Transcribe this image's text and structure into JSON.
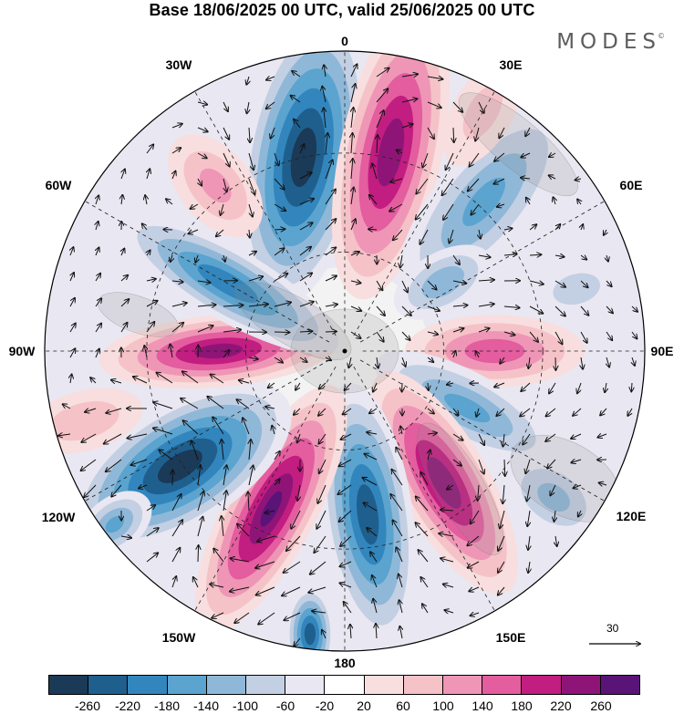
{
  "title": "Base 18/06/2025 00 UTC, valid 25/06/2025 00 UTC",
  "logo": {
    "text": "MODES",
    "mark": "©"
  },
  "longitude_labels": [
    {
      "text": "0",
      "deg": 0
    },
    {
      "text": "30E",
      "deg": 30
    },
    {
      "text": "60E",
      "deg": 60
    },
    {
      "text": "90E",
      "deg": 90
    },
    {
      "text": "120E",
      "deg": 120
    },
    {
      "text": "150E",
      "deg": 150
    },
    {
      "text": "180",
      "deg": 180
    },
    {
      "text": "150W",
      "deg": 210
    },
    {
      "text": "120W",
      "deg": 240
    },
    {
      "text": "90W",
      "deg": 270
    },
    {
      "text": "60W",
      "deg": 300
    },
    {
      "text": "30W",
      "deg": 330
    }
  ],
  "reference_vector": {
    "value": "30"
  },
  "colorbar": {
    "colors": [
      "#1a3a57",
      "#1f5f8e",
      "#3286bd",
      "#5aa4cf",
      "#8fb8d8",
      "#c3cfe3",
      "#e9e7f1",
      "#ffffff",
      "#f8dede",
      "#f5c2c8",
      "#ef96b6",
      "#e35d9f",
      "#c21d80",
      "#8e1577",
      "#5a1478"
    ],
    "labels": [
      "-260",
      "-220",
      "-180",
      "-140",
      "-100",
      "-60",
      "-20",
      "20",
      "60",
      "100",
      "140",
      "180",
      "220",
      "260"
    ]
  },
  "anomaly_centers": [
    {
      "lon": 348,
      "colat": 0.66,
      "value": -280,
      "sx": 0.2,
      "sy": 0.5,
      "rot": 10
    },
    {
      "lon": 13,
      "colat": 0.68,
      "value": 240,
      "sx": 0.17,
      "sy": 0.5,
      "rot": 12
    },
    {
      "lon": 43,
      "colat": 0.68,
      "value": -140,
      "sx": 0.16,
      "sy": 0.4,
      "rot": 40
    },
    {
      "lon": 55,
      "colat": 0.4,
      "value": -120,
      "sx": 0.1,
      "sy": 0.18,
      "rot": 60
    },
    {
      "lon": 90,
      "colat": 0.5,
      "value": 160,
      "sx": 0.12,
      "sy": 0.3,
      "rot": 90
    },
    {
      "lon": 115,
      "colat": 0.45,
      "value": -140,
      "sx": 0.12,
      "sy": 0.34,
      "rot": 118
    },
    {
      "lon": 143,
      "colat": 0.55,
      "value": 240,
      "sx": 0.15,
      "sy": 0.42,
      "rot": 150
    },
    {
      "lon": 172,
      "colat": 0.55,
      "value": -240,
      "sx": 0.15,
      "sy": 0.44,
      "rot": 172
    },
    {
      "lon": 205,
      "colat": 0.58,
      "value": 260,
      "sx": 0.15,
      "sy": 0.46,
      "rot": 208
    },
    {
      "lon": 235,
      "colat": 0.67,
      "value": -280,
      "sx": 0.2,
      "sy": 0.42,
      "rot": 238
    },
    {
      "lon": 270,
      "colat": 0.42,
      "value": 230,
      "sx": 0.12,
      "sy": 0.4,
      "rot": 265
    },
    {
      "lon": 300,
      "colat": 0.45,
      "value": -200,
      "sx": 0.12,
      "sy": 0.42,
      "rot": 300
    },
    {
      "lon": 322,
      "colat": 0.7,
      "value": 100,
      "sx": 0.12,
      "sy": 0.2,
      "rot": 320
    },
    {
      "lon": 187,
      "colat": 0.95,
      "value": -240,
      "sx": 0.08,
      "sy": 0.16,
      "rot": 180
    },
    {
      "lon": 233,
      "colat": 0.96,
      "value": -140,
      "sx": 0.09,
      "sy": 0.14,
      "rot": 232
    },
    {
      "lon": 125,
      "colat": 0.85,
      "value": -100,
      "sx": 0.12,
      "sy": 0.18,
      "rot": 125
    },
    {
      "lon": 75,
      "colat": 0.8,
      "value": -60,
      "sx": 0.1,
      "sy": 0.16,
      "rot": 75
    },
    {
      "lon": 255,
      "colat": 0.9,
      "value": 80,
      "sx": 0.1,
      "sy": 0.2,
      "rot": 255
    },
    {
      "lon": 30,
      "colat": 0.92,
      "value": 60,
      "sx": 0.1,
      "sy": 0.2,
      "rot": 30
    }
  ]
}
